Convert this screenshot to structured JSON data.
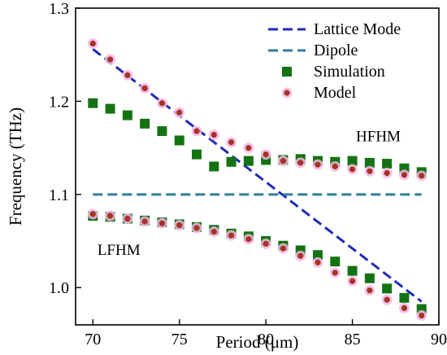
{
  "chart_data": {
    "type": "scatter",
    "xlabel": "Period (μm)",
    "ylabel": "Frequency (THz)",
    "xlim": [
      69,
      90
    ],
    "ylim": [
      0.96,
      1.3
    ],
    "x_ticks": [
      70,
      75,
      80,
      85,
      90
    ],
    "y_ticks": [
      1.0,
      1.1,
      1.2,
      1.3
    ],
    "y_tick_labels": [
      "1.0",
      "1.1",
      "1.2",
      "1.3"
    ],
    "legend_position": "top-right",
    "colors": {
      "lattice": "#1f2ab8",
      "dipole": "#2f7f9a",
      "simulation": "#137313",
      "model": "#a83224",
      "model_halo": "#f2b8e6"
    },
    "series": [
      {
        "name": "Lattice Mode",
        "kind": "dashed-line",
        "x": [
          70,
          89
        ],
        "y": [
          1.256,
          0.985
        ]
      },
      {
        "name": "Dipole",
        "kind": "dashed-line",
        "x": [
          70,
          89
        ],
        "y": [
          1.1,
          1.1
        ]
      },
      {
        "name": "Simulation",
        "kind": "square-markers",
        "branches": [
          {
            "x": [
              70,
              71,
              72,
              73,
              74,
              75,
              76,
              77,
              78,
              79,
              80,
              81,
              82,
              83,
              84,
              85,
              86,
              87,
              88,
              89
            ],
            "y": [
              1.198,
              1.192,
              1.185,
              1.176,
              1.168,
              1.158,
              1.143,
              1.13,
              1.135,
              1.136,
              1.137,
              1.137,
              1.138,
              1.136,
              1.135,
              1.136,
              1.134,
              1.133,
              1.128,
              1.124
            ]
          },
          {
            "x": [
              70,
              71,
              72,
              73,
              74,
              75,
              76,
              77,
              78,
              79,
              80,
              81,
              82,
              83,
              84,
              85,
              86,
              87,
              88,
              89
            ],
            "y": [
              1.077,
              1.076,
              1.074,
              1.072,
              1.07,
              1.068,
              1.065,
              1.062,
              1.058,
              1.055,
              1.05,
              1.045,
              1.04,
              1.035,
              1.028,
              1.018,
              1.01,
              0.999,
              0.989,
              0.977
            ]
          }
        ]
      },
      {
        "name": "Model",
        "kind": "circle-markers",
        "branches": [
          {
            "x": [
              70,
              71,
              72,
              73,
              74,
              75,
              76,
              77,
              78,
              79,
              80,
              81,
              82,
              83,
              84,
              85,
              86,
              87,
              88,
              89
            ],
            "y": [
              1.262,
              1.245,
              1.228,
              1.214,
              1.198,
              1.188,
              1.168,
              1.164,
              1.156,
              1.15,
              1.143,
              1.136,
              1.134,
              1.132,
              1.13,
              1.127,
              1.125,
              1.123,
              1.121,
              1.12
            ]
          },
          {
            "x": [
              70,
              71,
              72,
              73,
              74,
              75,
              76,
              77,
              78,
              79,
              80,
              81,
              82,
              83,
              84,
              85,
              86,
              87,
              88,
              89
            ],
            "y": [
              1.079,
              1.077,
              1.074,
              1.071,
              1.069,
              1.067,
              1.064,
              1.06,
              1.056,
              1.052,
              1.047,
              1.042,
              1.034,
              1.027,
              1.016,
              1.007,
              0.997,
              0.987,
              0.978,
              0.97
            ]
          }
        ]
      }
    ],
    "annotations": [
      {
        "text": "HFHM",
        "x": 86.5,
        "y": 1.157
      },
      {
        "text": "LFHM",
        "x": 71.5,
        "y": 1.035
      }
    ]
  }
}
